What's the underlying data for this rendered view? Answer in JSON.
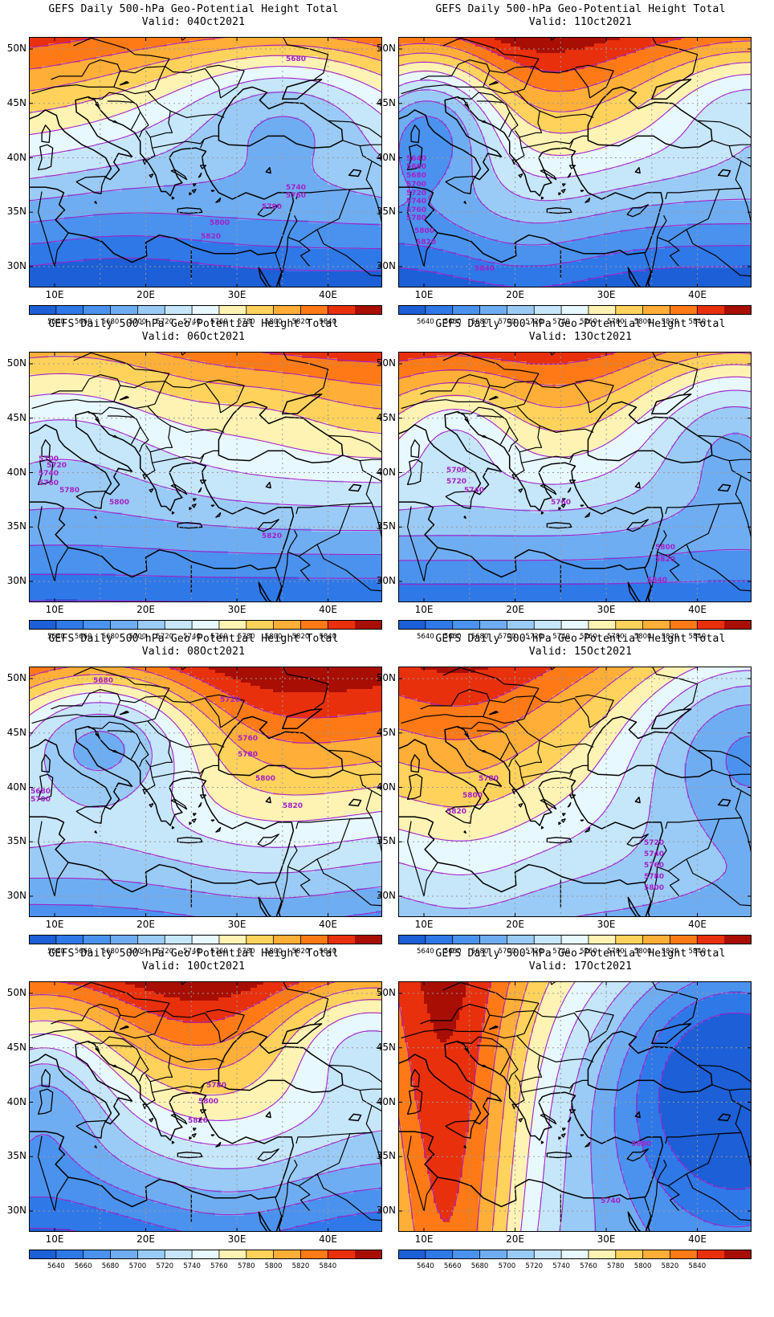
{
  "colors": {
    "5620": "#1c5fd6",
    "5640": "#2f78e8",
    "5660": "#4a92ee",
    "5680": "#6fadf2",
    "5700": "#9acbf6",
    "5720": "#c6e6fa",
    "5740": "#e8f8ff",
    "5760": "#fff3b3",
    "5780": "#ffd25c",
    "5800": "#ffae37",
    "5820": "#ff7a16",
    "5840": "#e8300c",
    "5860": "#a80e04",
    "contour": "#a322c8",
    "grid": "#9a9a9a",
    "coast": "#000000"
  },
  "axis": {
    "lat_labels": [
      "30N",
      "35N",
      "40N",
      "45N",
      "50N"
    ],
    "lon_labels": [
      "10E",
      "20E",
      "30E",
      "40E"
    ]
  },
  "colorbar": {
    "labels": [
      "5640",
      "5660",
      "5680",
      "5700",
      "5720",
      "5740",
      "5760",
      "5780",
      "5800",
      "5820",
      "5840"
    ]
  },
  "panels": [
    {
      "title": "GEFS Daily 500-hPa Geo-Potential Height Total",
      "valid": "Valid: 04Oct2021",
      "contour_labels": [
        "5680",
        "5740",
        "5760",
        "5780",
        "5800",
        "5820"
      ]
    },
    {
      "title": "GEFS Daily 500-hPa Geo-Potential Height Total",
      "valid": "Valid: 11Oct2021",
      "contour_labels": [
        "5640",
        "5660",
        "5680",
        "5700",
        "5720",
        "5740",
        "5760",
        "5780",
        "5800",
        "5820",
        "5840"
      ]
    },
    {
      "title": "GEFS Daily 500-hPa Geo-Potential Height Total",
      "valid": "Valid: 06Oct2021",
      "contour_labels": [
        "5700",
        "5720",
        "5740",
        "5760",
        "5780",
        "5800",
        "5820"
      ]
    },
    {
      "title": "GEFS Daily 500-hPa Geo-Potential Height Total",
      "valid": "Valid: 13Oct2021",
      "contour_labels": [
        "5700",
        "5720",
        "5740",
        "5760",
        "5800",
        "5820",
        "5840"
      ]
    },
    {
      "title": "GEFS Daily 500-hPa Geo-Potential Height Total",
      "valid": "Valid: 08Oct2021",
      "contour_labels": [
        "5680",
        "5720",
        "5760",
        "5780",
        "5800",
        "5820",
        "5680",
        "5700"
      ]
    },
    {
      "title": "GEFS Daily 500-hPa Geo-Potential Height Total",
      "valid": "Valid: 15Oct2021",
      "contour_labels": [
        "5780",
        "5800",
        "5820",
        "5720",
        "5740",
        "5760",
        "5780",
        "5800"
      ]
    },
    {
      "title": "GEFS Daily 500-hPa Geo-Potential Height Total",
      "valid": "Valid: 10Oct2021",
      "contour_labels": [
        "5780",
        "5800",
        "5820"
      ]
    },
    {
      "title": "GEFS Daily 500-hPa Geo-Potential Height Total",
      "valid": "Valid: 17Oct2021",
      "contour_labels": [
        "5680",
        "5740"
      ]
    }
  ]
}
